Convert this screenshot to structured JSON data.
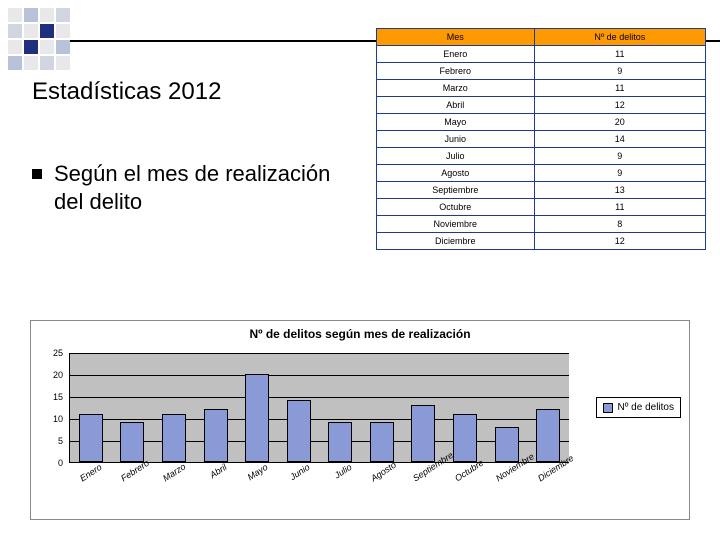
{
  "title": "Estadísticas 2012",
  "bullet": "Según el mes de realización del delito",
  "table": {
    "headers": [
      "Mes",
      "Nº de delitos"
    ],
    "rows": [
      [
        "Enero",
        "11"
      ],
      [
        "Febrero",
        "9"
      ],
      [
        "Marzo",
        "11"
      ],
      [
        "Abril",
        "12"
      ],
      [
        "Mayo",
        "20"
      ],
      [
        "Junio",
        "14"
      ],
      [
        "Julio",
        "9"
      ],
      [
        "Agosto",
        "9"
      ],
      [
        "Septiembre",
        "13"
      ],
      [
        "Octubre",
        "11"
      ],
      [
        "Noviembre",
        "8"
      ],
      [
        "Diciembre",
        "12"
      ]
    ],
    "header_bg": "#ff9900",
    "border_color": "#1f3a93"
  },
  "chart": {
    "type": "bar",
    "title": "Nº de delitos según mes de realización",
    "categories": [
      "Enero",
      "Febrero",
      "Marzo",
      "Abril",
      "Mayo",
      "Junio",
      "Julio",
      "Agosto",
      "Septiembre",
      "Octubre",
      "Noviembre",
      "Diciembre"
    ],
    "values": [
      11,
      9,
      11,
      12,
      20,
      14,
      9,
      9,
      13,
      11,
      8,
      12
    ],
    "ylim": [
      0,
      25
    ],
    "ytick_step": 5,
    "bar_color": "#8a9ad6",
    "plot_bg": "#c0c0c0",
    "grid_color": "#000000",
    "legend_label": "Nº de delitos",
    "title_fontsize": 12,
    "label_fontsize": 9
  }
}
